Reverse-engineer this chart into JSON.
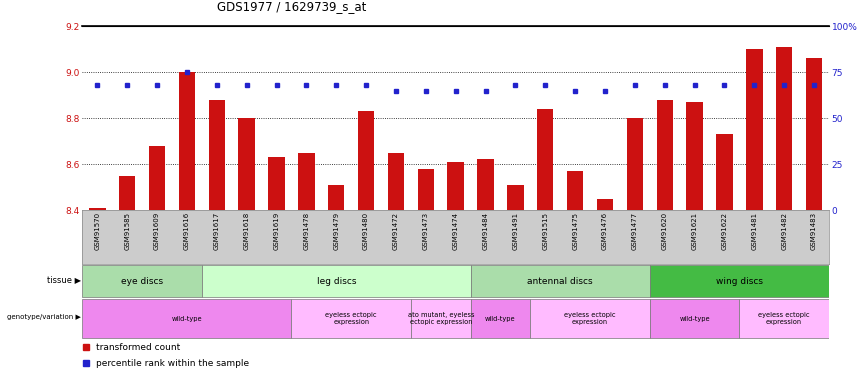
{
  "title": "GDS1977 / 1629739_s_at",
  "samples": [
    "GSM91570",
    "GSM91585",
    "GSM91609",
    "GSM91616",
    "GSM91617",
    "GSM91618",
    "GSM91619",
    "GSM91478",
    "GSM91479",
    "GSM91480",
    "GSM91472",
    "GSM91473",
    "GSM91474",
    "GSM91484",
    "GSM91491",
    "GSM91515",
    "GSM91475",
    "GSM91476",
    "GSM91477",
    "GSM91620",
    "GSM91621",
    "GSM91622",
    "GSM91481",
    "GSM91482",
    "GSM91483"
  ],
  "red_values": [
    8.41,
    8.55,
    8.68,
    9.0,
    8.88,
    8.8,
    8.63,
    8.65,
    8.51,
    8.83,
    8.65,
    8.58,
    8.61,
    8.62,
    8.51,
    8.84,
    8.57,
    8.45,
    8.8,
    8.88,
    8.87,
    8.73,
    9.1,
    9.11,
    9.06
  ],
  "blue_percentile": [
    68,
    68,
    68,
    75,
    68,
    68,
    68,
    68,
    68,
    68,
    65,
    65,
    65,
    65,
    68,
    68,
    65,
    65,
    68,
    68,
    68,
    68,
    68,
    68,
    68
  ],
  "ylim_left": [
    8.4,
    9.2
  ],
  "ylim_right": [
    0,
    100
  ],
  "yticks_left": [
    8.4,
    8.6,
    8.8,
    9.0,
    9.2
  ],
  "yticks_right": [
    0,
    25,
    50,
    75,
    100
  ],
  "tissue_groups": [
    {
      "label": "eye discs",
      "start": 0,
      "end": 4,
      "color": "#aaddaa"
    },
    {
      "label": "leg discs",
      "start": 4,
      "end": 13,
      "color": "#ccffcc"
    },
    {
      "label": "antennal discs",
      "start": 13,
      "end": 19,
      "color": "#aaddaa"
    },
    {
      "label": "wing discs",
      "start": 19,
      "end": 25,
      "color": "#44bb44"
    }
  ],
  "genotype_groups": [
    {
      "label": "wild-type",
      "start": 0,
      "end": 7,
      "color": "#ee88ee"
    },
    {
      "label": "eyeless ectopic\nexpression",
      "start": 7,
      "end": 11,
      "color": "#ffbbff"
    },
    {
      "label": "ato mutant, eyeless\nectopic expression",
      "start": 11,
      "end": 13,
      "color": "#ffbbff"
    },
    {
      "label": "wild-type",
      "start": 13,
      "end": 15,
      "color": "#ee88ee"
    },
    {
      "label": "eyeless ectopic\nexpression",
      "start": 15,
      "end": 19,
      "color": "#ffbbff"
    },
    {
      "label": "wild-type",
      "start": 19,
      "end": 22,
      "color": "#ee88ee"
    },
    {
      "label": "eyeless ectopic\nexpression",
      "start": 22,
      "end": 25,
      "color": "#ffbbff"
    }
  ],
  "bar_color": "#cc1111",
  "dot_color": "#2222cc",
  "fig_bg": "#ffffff",
  "plot_bg": "#ffffff",
  "xlabel_bg": "#cccccc",
  "left_axis_color": "#cc1111",
  "right_axis_color": "#2222cc"
}
